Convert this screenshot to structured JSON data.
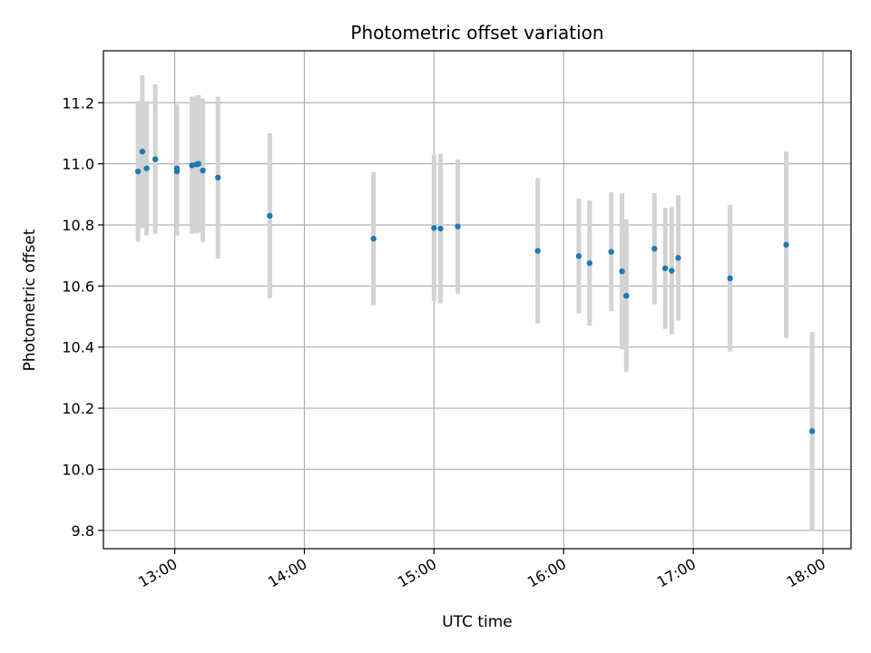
{
  "chart_data": {
    "type": "scatter",
    "title": "Photometric offset variation",
    "xlabel": "UTC time",
    "ylabel": "Photometric offset",
    "x_is_time": true,
    "xlim": [
      "12:27",
      "18:13"
    ],
    "ylim": [
      9.74,
      11.37
    ],
    "x_ticks": [
      "13:00",
      "14:00",
      "15:00",
      "16:00",
      "17:00",
      "18:00"
    ],
    "y_ticks": [
      9.8,
      10.0,
      10.2,
      10.4,
      10.6,
      10.8,
      11.0,
      11.2
    ],
    "grid": true,
    "point_color": "#1f77b4",
    "errorbar_color": "#d3d3d3",
    "points": [
      {
        "x": "12:43",
        "y": 10.975,
        "yerr": 0.23
      },
      {
        "x": "12:45",
        "y": 11.04,
        "yerr": 0.25
      },
      {
        "x": "12:47",
        "y": 10.985,
        "yerr": 0.22
      },
      {
        "x": "12:51",
        "y": 11.015,
        "yerr": 0.245
      },
      {
        "x": "13:01",
        "y": 10.975,
        "yerr": 0.21
      },
      {
        "x": "13:01",
        "y": 10.985,
        "yerr": 0.21
      },
      {
        "x": "13:08",
        "y": 10.995,
        "yerr": 0.225
      },
      {
        "x": "13:10",
        "y": 10.998,
        "yerr": 0.225
      },
      {
        "x": "13:11",
        "y": 11.0,
        "yerr": 0.225
      },
      {
        "x": "13:13",
        "y": 10.978,
        "yerr": 0.235
      },
      {
        "x": "13:20",
        "y": 10.955,
        "yerr": 0.265
      },
      {
        "x": "13:44",
        "y": 10.83,
        "yerr": 0.27
      },
      {
        "x": "14:32",
        "y": 10.755,
        "yerr": 0.218
      },
      {
        "x": "15:00",
        "y": 10.79,
        "yerr": 0.24
      },
      {
        "x": "15:03",
        "y": 10.788,
        "yerr": 0.245
      },
      {
        "x": "15:11",
        "y": 10.795,
        "yerr": 0.22
      },
      {
        "x": "15:48",
        "y": 10.715,
        "yerr": 0.238
      },
      {
        "x": "16:07",
        "y": 10.698,
        "yerr": 0.188
      },
      {
        "x": "16:12",
        "y": 10.675,
        "yerr": 0.205
      },
      {
        "x": "16:22",
        "y": 10.712,
        "yerr": 0.195
      },
      {
        "x": "16:27",
        "y": 10.648,
        "yerr": 0.255
      },
      {
        "x": "16:29",
        "y": 10.568,
        "yerr": 0.25
      },
      {
        "x": "16:42",
        "y": 10.722,
        "yerr": 0.182
      },
      {
        "x": "16:47",
        "y": 10.658,
        "yerr": 0.198
      },
      {
        "x": "16:50",
        "y": 10.65,
        "yerr": 0.208
      },
      {
        "x": "16:53",
        "y": 10.692,
        "yerr": 0.205
      },
      {
        "x": "17:17",
        "y": 10.625,
        "yerr": 0.24
      },
      {
        "x": "17:43",
        "y": 10.735,
        "yerr": 0.305
      },
      {
        "x": "17:55",
        "y": 10.125,
        "yerr": 0.325
      }
    ]
  }
}
